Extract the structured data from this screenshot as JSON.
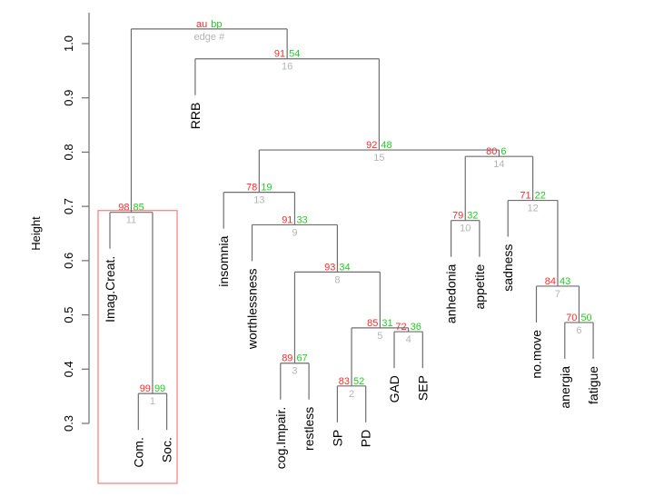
{
  "chart_data": {
    "type": "dendrogram",
    "ylabel": "Height",
    "ylim": [
      0.3,
      1.0
    ],
    "yticks": [
      "0.3",
      "0.4",
      "0.5",
      "0.6",
      "0.7",
      "0.8",
      "0.9",
      "1.0"
    ],
    "legend": {
      "au": "au",
      "bp": "bp",
      "edge": "edge #"
    },
    "colors": {
      "au": "#ff2a2a",
      "bp": "#22cc22",
      "edge": "#b4b4b4",
      "highlight_box": "#ff7a7a"
    },
    "leaves": [
      "Imag.Creat.",
      "Com.",
      "Soc.",
      "RRB",
      "insomnia",
      "worthlessness",
      "cog.Impair.",
      "restless",
      "SP",
      "PD",
      "GAD",
      "SEP",
      "anhedonia",
      "appetite",
      "sadness",
      "no.move",
      "anergia",
      "fatigue"
    ],
    "nodes": [
      {
        "edge": "1",
        "children": [
          "Com.",
          "Soc."
        ],
        "height": 0.355,
        "au": "99",
        "bp": "99"
      },
      {
        "edge": "2",
        "children": [
          "SP",
          "PD"
        ],
        "height": 0.369,
        "au": "83",
        "bp": "52"
      },
      {
        "edge": "3",
        "children": [
          "cog.Impair.",
          "restless"
        ],
        "height": 0.411,
        "au": "89",
        "bp": "67"
      },
      {
        "edge": "4",
        "children": [
          "GAD",
          "SEP"
        ],
        "height": 0.469,
        "au": "72",
        "bp": "36"
      },
      {
        "edge": "5",
        "children": [
          "#2",
          "#4"
        ],
        "height": 0.476,
        "au": "85",
        "bp": "31"
      },
      {
        "edge": "6",
        "children": [
          "anergia",
          "fatigue"
        ],
        "height": 0.486,
        "au": "70",
        "bp": "50"
      },
      {
        "edge": "7",
        "children": [
          "no.move",
          "#6"
        ],
        "height": 0.553,
        "au": "84",
        "bp": "43"
      },
      {
        "edge": "8",
        "children": [
          "#3",
          "#5"
        ],
        "height": 0.579,
        "au": "93",
        "bp": "34"
      },
      {
        "edge": "9",
        "children": [
          "worthlessness",
          "#8"
        ],
        "height": 0.666,
        "au": "91",
        "bp": "33"
      },
      {
        "edge": "10",
        "children": [
          "anhedonia",
          "appetite"
        ],
        "height": 0.674,
        "au": "79",
        "bp": "32"
      },
      {
        "edge": "11",
        "children": [
          "Imag.Creat.",
          "#1"
        ],
        "height": 0.689,
        "au": "98",
        "bp": "85"
      },
      {
        "edge": "12",
        "children": [
          "sadness",
          "#7"
        ],
        "height": 0.711,
        "au": "71",
        "bp": "22"
      },
      {
        "edge": "13",
        "children": [
          "insomnia",
          "#9"
        ],
        "height": 0.726,
        "au": "78",
        "bp": "19"
      },
      {
        "edge": "14",
        "children": [
          "#10",
          "#12"
        ],
        "height": 0.792,
        "au": "80",
        "bp": "6"
      },
      {
        "edge": "15",
        "children": [
          "#13",
          "#14"
        ],
        "height": 0.804,
        "au": "92",
        "bp": "48"
      },
      {
        "edge": "16",
        "children": [
          "RRB",
          "#15"
        ],
        "height": 0.972,
        "au": "91",
        "bp": "54"
      },
      {
        "edge": "",
        "children": [
          "#11",
          "#16"
        ],
        "height": 1.027,
        "au": "",
        "bp": ""
      }
    ],
    "highlighted_cluster": "11"
  }
}
